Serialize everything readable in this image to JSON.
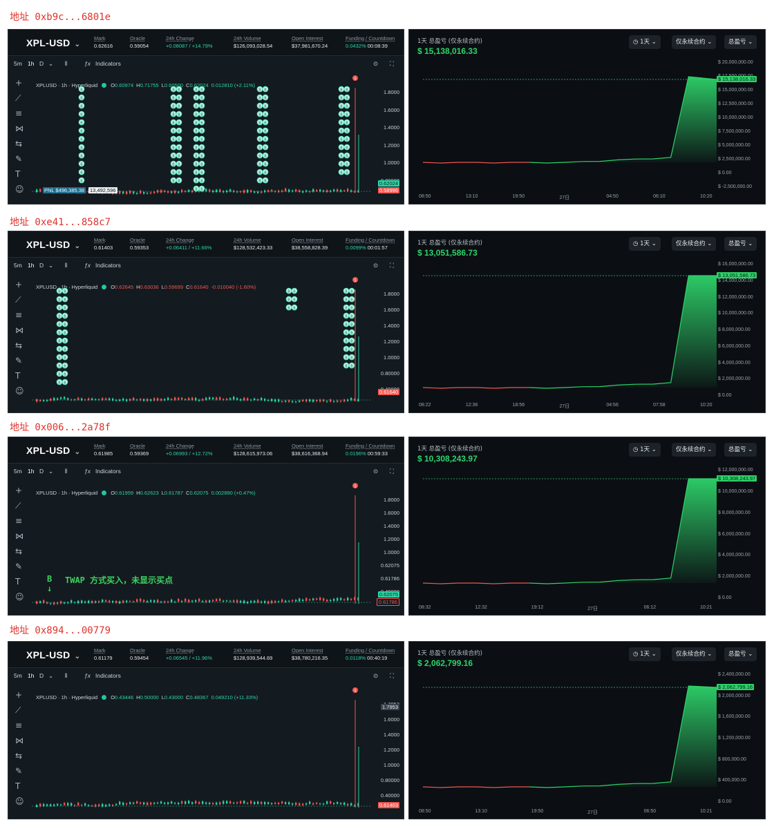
{
  "panels": [
    {
      "address": "地址 0xb9c...6801e",
      "symbol": "XPL-USD",
      "stats": {
        "mark": "0.62616",
        "oracle": "0.59054",
        "change": "+0.08087 / +14.79%",
        "volume": "$126,093,028.54",
        "oi": "$37,981,670.24",
        "funding": "0.0432%",
        "countdown": "00:08:39"
      },
      "ohlc": {
        "O": "0.60974",
        "H": "0.71755",
        "L": "0.60500",
        "C": "0.62024",
        "chg": "0.012810 (+2.11%)",
        "chg_color": "g"
      },
      "yticks": [
        "1.8000",
        "1.6000",
        "1.4000",
        "1.2000",
        "1.0000",
        "0.80000"
      ],
      "price_tags": [
        "0.62024",
        "0.58996"
      ],
      "pnl_label": "PNL $496,385.38",
      "size_label": "13,492,596",
      "pnl_title": "1天 总盈亏 (仅永续合约)",
      "pnl_value": "$ 15,138,016.33",
      "pnl_yticks": [
        "$ 20,000,000.00",
        "$ 17,500,000.00",
        "$ 15,000,000.00",
        "$ 12,500,000.00",
        "$ 10,000,000.00",
        "$ 7,500,000.00",
        "$ 5,000,000.00",
        "$ 2,500,000.00",
        "$ 0.00",
        "$ -2,500,000.00"
      ],
      "pnl_tag": "$ 15,138,016.33",
      "pnl_x": [
        "08:50",
        "13:10",
        "19:50",
        "27日",
        "04:50",
        "06:10",
        "10:20"
      ],
      "pnl_curve": [
        0,
        50,
        200,
        1000,
        1200,
        1900,
        15138016,
        20000000,
        15138016
      ]
    },
    {
      "address": "地址 0xe41...858c7",
      "symbol": "XPL-USD",
      "stats": {
        "mark": "0.61403",
        "oracle": "0.59353",
        "change": "+0.06411 / +11.66%",
        "volume": "$128,532,423.33",
        "oi": "$38,558,828.39",
        "funding": "0.0099%",
        "countdown": "00:01:57"
      },
      "ohlc": {
        "O": "0.62645",
        "H": "0.63036",
        "L": "0.59699",
        "C": "0.61640",
        "chg": "-0.010040 (-1.60%)",
        "chg_color": "r"
      },
      "yticks": [
        "1.8000",
        "1.6000",
        "1.4000",
        "1.2000",
        "1.0000",
        "0.80000",
        "0.40000"
      ],
      "price_tags": [
        "0.61640"
      ],
      "pnl_title": "1天 总盈亏 (仅永续合约)",
      "pnl_value": "$ 13,051,586.73",
      "pnl_yticks": [
        "$ 16,000,000.00",
        "$ 14,000,000.00",
        "$ 12,000,000.00",
        "$ 10,000,000.00",
        "$ 8,000,000.00",
        "$ 6,000,000.00",
        "$ 4,000,000.00",
        "$ 2,000,000.00",
        "$ 0.00"
      ],
      "pnl_tag": "$ 13,051,586.73",
      "pnl_x": [
        "08:22",
        "12:36",
        "18:56",
        "27日",
        "04:56",
        "07:58",
        "10:20"
      ]
    },
    {
      "address": "地址 0x006...2a78f",
      "symbol": "XPL-USD",
      "stats": {
        "mark": "0.61985",
        "oracle": "0.59369",
        "change": "+0.06993 / +12.72%",
        "volume": "$128,615,973.06",
        "oi": "$38,616,368.94",
        "funding": "0.0196%",
        "countdown": "00:59:33"
      },
      "ohlc": {
        "O": "0.61959",
        "H": "0.62623",
        "L": "0.61787",
        "C": "0.62075",
        "chg": "0.002890 (+0.47%)",
        "chg_color": "g"
      },
      "yticks": [
        "1.8000",
        "1.6000",
        "1.4000",
        "1.2000",
        "1.0000",
        "0.62075",
        "0.61786",
        "0.40000"
      ],
      "price_tags": [
        "0.62075",
        "0.61786"
      ],
      "twap_note": "TWAP 方式买入，未显示买点",
      "pnl_title": "1天 总盈亏 (仅永续合约)",
      "pnl_value": "$ 10,308,243.97",
      "pnl_yticks": [
        "$ 12,000,000.00",
        "$ 10,000,000.00",
        "$ 8,000,000.00",
        "$ 6,000,000.00",
        "$ 4,000,000.00",
        "$ 2,000,000.00",
        "$ 0.00"
      ],
      "pnl_tag": "$ 10,308,243.97",
      "pnl_x": [
        "08:32",
        "12:32",
        "19:12",
        "27日",
        "06:12",
        "10:21"
      ]
    },
    {
      "address": "地址 0x894...00779",
      "symbol": "XPL-USD",
      "stats": {
        "mark": "0.61179",
        "oracle": "0.59454",
        "change": "+0.06545 / +11.96%",
        "volume": "$128,939,544.69",
        "oi": "$38,780,216.35",
        "funding": "0.0118%",
        "countdown": "00:40:19"
      },
      "ohlc": {
        "O": "0.43446",
        "H": "0.50000",
        "L": "0.43000",
        "C": "0.48367",
        "chg": "0.049210 (+11.33%)",
        "chg_color": "g"
      },
      "yticks": [
        "1.7953",
        "1.6000",
        "1.4000",
        "1.2000",
        "1.0000",
        "0.80000",
        "0.40000"
      ],
      "price_tags": [
        "1.7953",
        "0.61403"
      ],
      "pnl_title": "1天 总盈亏 (仅永续合约)",
      "pnl_value": "$ 2,062,799.16",
      "pnl_yticks": [
        "$ 2,400,000.00",
        "$ 2,000,000.00",
        "$ 1,600,000.00",
        "$ 1,200,000.00",
        "$ 800,000.00",
        "$ 400,000.00",
        "$ 0.00"
      ],
      "pnl_tag": "$ 2,062,799.16",
      "pnl_x": [
        "08:50",
        "13:10",
        "19:50",
        "27日",
        "06:50",
        "10:21"
      ]
    }
  ],
  "labels": {
    "mark": "Mark",
    "oracle": "Oracle",
    "change": "24h Change",
    "volume": "24h Volume",
    "oi": "Open Interest",
    "funding": "Funding / Countdown",
    "tf5m": "5m",
    "tf1h": "1h",
    "tfD": "D",
    "indicators": "Indicators",
    "chart_name": "XPLUSD · 1h · Hyperliquid",
    "range": "1天",
    "contract": "仅永续合约",
    "pnl_type": "总盈亏",
    "buy_marker": "B",
    "sell_marker": "S"
  },
  "colors": {
    "up": "#2ed3a5",
    "down": "#f0564f",
    "pnl_green": "#2ed36a",
    "bg": "#131a20"
  }
}
